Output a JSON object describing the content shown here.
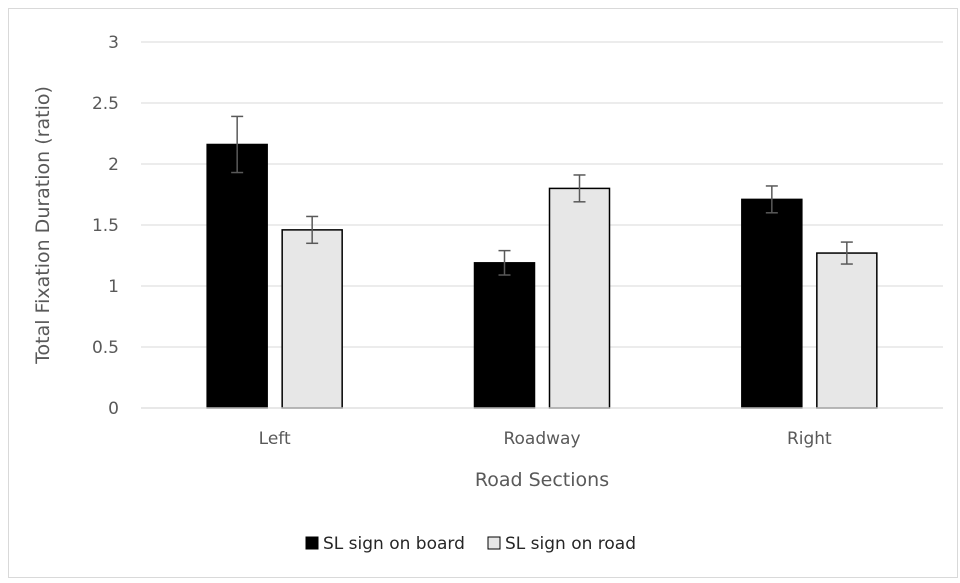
{
  "chart_data": {
    "type": "bar",
    "title": "",
    "xlabel": "Road Sections",
    "ylabel": "Total Fixation Duration (ratio)",
    "categories": [
      "Left",
      "Roadway",
      "Right"
    ],
    "ylim": [
      0,
      3
    ],
    "yticks": [
      0,
      0.5,
      1,
      1.5,
      2,
      2.5,
      3
    ],
    "ytick_labels": [
      "0",
      "0.5",
      "1",
      "1.5",
      "2",
      "2.5",
      "3"
    ],
    "grid": true,
    "legend_position": "bottom",
    "series": [
      {
        "name": "SL sign on board",
        "color": "#000000",
        "values": [
          2.16,
          1.19,
          1.71
        ],
        "error": [
          0.23,
          0.1,
          0.11
        ]
      },
      {
        "name": "SL sign on road",
        "color": "#e7e7e7",
        "values": [
          1.46,
          1.8,
          1.27
        ],
        "error": [
          0.11,
          0.11,
          0.09
        ]
      }
    ]
  }
}
